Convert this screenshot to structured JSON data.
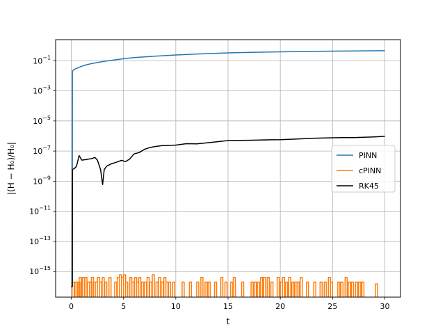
{
  "chart_data": {
    "type": "line",
    "xlabel": "t",
    "ylabel": "|(H − H₀)/H₀|",
    "yscale": "log",
    "xlim": [
      -1.5,
      31.5
    ],
    "ylim": [
      2e-17,
      2.5
    ],
    "xticks": [
      0,
      5,
      10,
      15,
      20,
      25,
      30
    ],
    "yticks": [
      {
        "value": 1e-15,
        "base": "10",
        "exp": "−15"
      },
      {
        "value": 1e-13,
        "base": "10",
        "exp": "−13"
      },
      {
        "value": 1e-11,
        "base": "10",
        "exp": "−11"
      },
      {
        "value": 1e-09,
        "base": "10",
        "exp": "−9"
      },
      {
        "value": 1e-07,
        "base": "10",
        "exp": "−7"
      },
      {
        "value": 1e-05,
        "base": "10",
        "exp": "−5"
      },
      {
        "value": 0.001,
        "base": "10",
        "exp": "−3"
      },
      {
        "value": 0.1,
        "base": "10",
        "exp": "−1"
      }
    ],
    "grid": true,
    "legend_position": "center-right",
    "series": [
      {
        "name": "PINN",
        "color": "#1f77b4",
        "x": [
          0.0,
          0.05,
          0.1,
          0.12,
          0.3,
          0.6,
          1.0,
          1.5,
          2.0,
          3.0,
          4.0,
          5.0,
          6.0,
          8.0,
          10.0,
          12.0,
          15.0,
          18.0,
          20.0,
          22.0,
          25.0,
          28.0,
          30.0
        ],
        "y": [
          1e-16,
          1e-16,
          1e-16,
          0.022,
          0.027,
          0.033,
          0.043,
          0.055,
          0.066,
          0.088,
          0.11,
          0.135,
          0.16,
          0.2,
          0.24,
          0.28,
          0.33,
          0.37,
          0.39,
          0.41,
          0.43,
          0.45,
          0.46
        ]
      },
      {
        "name": "cPINN",
        "color": "#ff7f0e",
        "x": [
          0.08,
          0.35,
          0.62,
          0.75,
          1.05,
          1.3,
          1.55,
          1.75,
          1.92,
          2.1,
          2.3,
          2.5,
          2.7,
          2.95,
          3.2,
          3.6,
          4.15,
          4.4,
          4.6,
          4.8,
          5.0,
          5.2,
          5.6,
          5.8,
          6.05,
          6.25,
          6.45,
          6.7,
          7.0,
          7.25,
          7.5,
          7.75,
          8.1,
          8.35,
          8.6,
          8.85,
          9.05,
          9.3,
          9.7,
          10.6,
          11.3,
          12.0,
          12.4,
          12.8,
          13.1,
          13.7,
          14.3,
          14.7,
          15.25,
          15.5,
          16.3,
          17.2,
          17.5,
          17.8,
          18.1,
          18.4,
          18.75,
          19.1,
          19.7,
          20.0,
          20.2,
          20.5,
          20.8,
          21.1,
          21.4,
          21.6,
          21.9,
          22.5,
          23.2,
          23.8,
          24.2,
          24.6,
          24.8,
          25.5,
          25.8,
          26.2,
          26.5,
          26.8,
          27.2,
          27.5,
          27.8,
          29.1
        ],
        "y": [
          2e-16,
          2e-16,
          2e-16,
          4e-16,
          4e-16,
          4e-16,
          2e-16,
          2e-16,
          4e-16,
          2e-16,
          2e-16,
          4e-16,
          2e-16,
          4e-16,
          2e-16,
          4e-16,
          2e-16,
          4e-16,
          6e-16,
          4e-16,
          6e-16,
          2e-16,
          4e-16,
          2e-16,
          4e-16,
          2e-16,
          4e-16,
          2e-16,
          2e-16,
          4e-16,
          2e-16,
          6e-16,
          2e-16,
          4e-16,
          2e-16,
          4e-16,
          2e-16,
          2e-16,
          2e-16,
          2e-16,
          2e-16,
          2e-16,
          4e-16,
          2e-16,
          2e-16,
          2e-16,
          4e-16,
          2e-16,
          2e-16,
          4e-16,
          2e-16,
          2e-16,
          2e-16,
          2e-16,
          4e-16,
          4e-16,
          4e-16,
          2e-16,
          4e-16,
          2e-16,
          4e-16,
          2e-16,
          4e-16,
          2e-16,
          2e-16,
          2e-16,
          4e-16,
          2e-16,
          2e-16,
          2e-16,
          2e-16,
          4e-16,
          2e-16,
          2e-16,
          2e-16,
          4e-16,
          2e-16,
          2e-16,
          2e-16,
          2e-16,
          2e-16,
          1.5e-16
        ]
      },
      {
        "name": "RK45",
        "color": "#000000",
        "x": [
          0.0,
          0.1,
          0.12,
          0.3,
          0.5,
          0.75,
          1.0,
          1.5,
          2.0,
          2.25,
          2.5,
          2.8,
          3.0,
          3.15,
          3.4,
          3.8,
          4.3,
          4.8,
          5.2,
          5.6,
          6.0,
          6.5,
          7.0,
          7.5,
          8.0,
          8.7,
          9.0,
          9.5,
          10.0,
          11.0,
          12.0,
          13.0,
          14.0,
          15.0,
          16.0,
          17.0,
          18.0,
          19.0,
          20.0,
          21.0,
          22.0,
          23.0,
          24.0,
          25.0,
          26.0,
          27.0,
          28.0,
          29.0,
          30.0
        ],
        "y": [
          1e-16,
          1e-16,
          6e-09,
          7e-09,
          1e-08,
          5e-08,
          2.5e-08,
          2.8e-08,
          3.2e-08,
          3.8e-08,
          2.5e-08,
          6e-09,
          6e-10,
          6e-09,
          1e-08,
          1.4e-08,
          1.8e-08,
          2.4e-08,
          2e-08,
          3e-08,
          6.5e-08,
          8e-08,
          1.3e-07,
          1.7e-07,
          2e-07,
          2.3e-07,
          2.3e-07,
          2.4e-07,
          2.5e-07,
          3.1e-07,
          3e-07,
          3.5e-07,
          4.2e-07,
          5e-07,
          5.1e-07,
          5.2e-07,
          5.4e-07,
          5.6e-07,
          5.7e-07,
          6.1e-07,
          6.5e-07,
          7e-07,
          7.3e-07,
          7.6e-07,
          7.8e-07,
          7.9e-07,
          8.2e-07,
          8.8e-07,
          9.5e-07
        ]
      }
    ]
  }
}
